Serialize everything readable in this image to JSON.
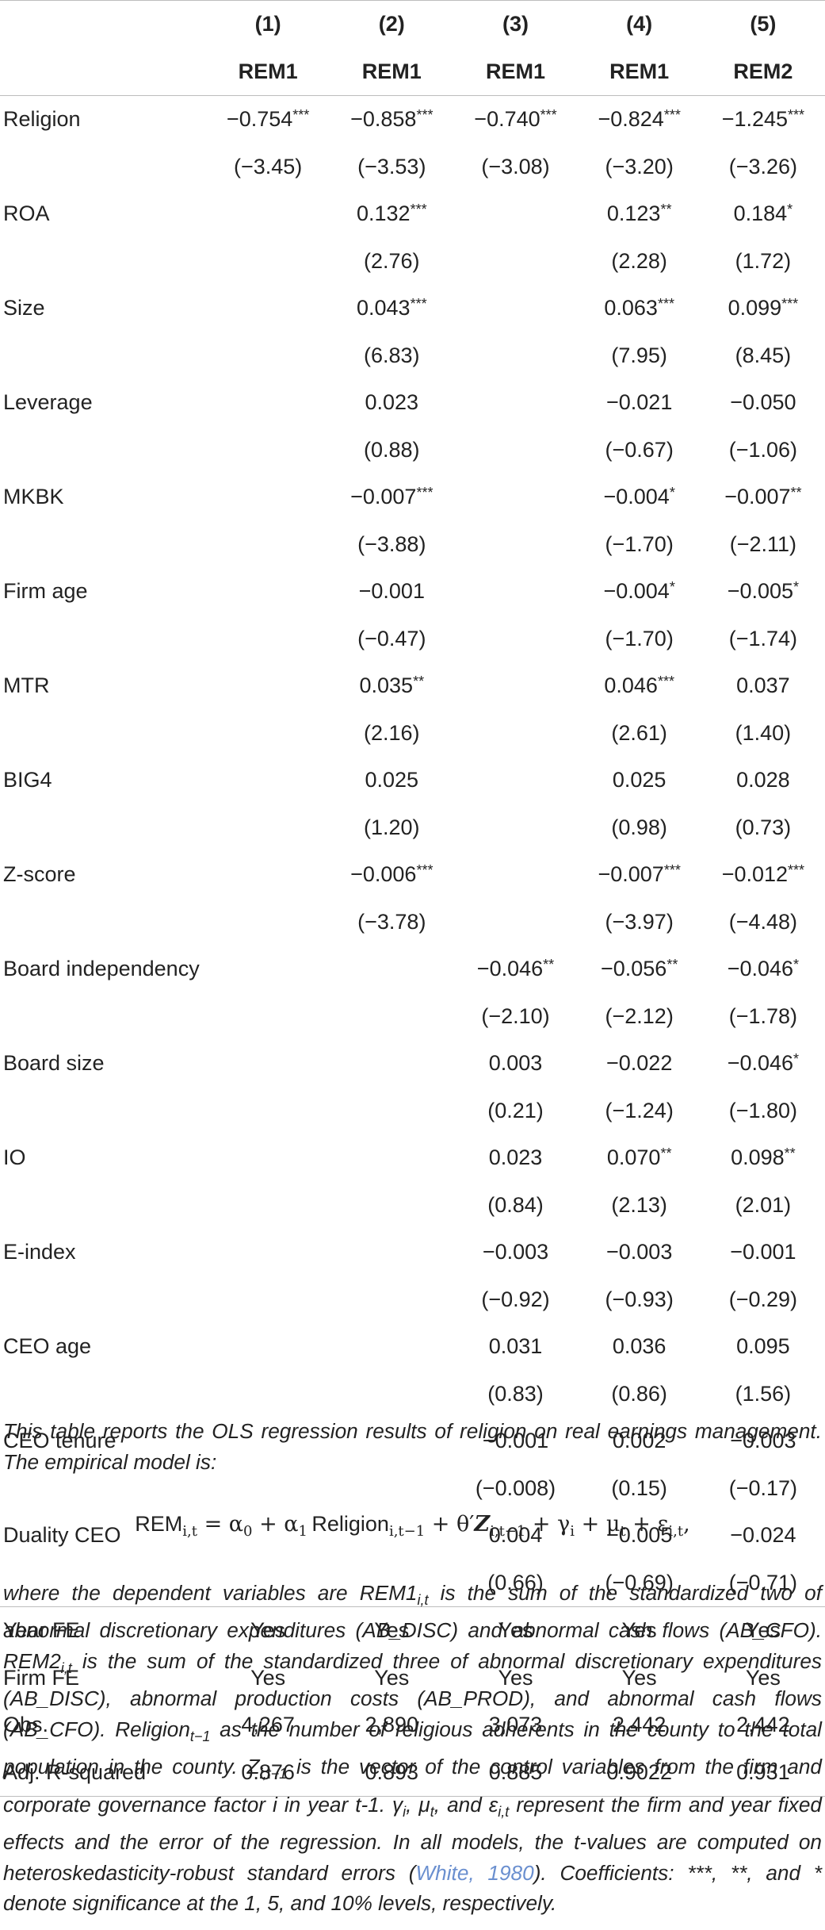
{
  "table": {
    "col_numbers": [
      "(1)",
      "(2)",
      "(3)",
      "(4)",
      "(5)"
    ],
    "col_dependents": [
      "REM1",
      "REM1",
      "REM1",
      "REM1",
      "REM2"
    ],
    "rows": [
      {
        "label": "Religion",
        "coef": [
          "−0.754***",
          "−0.858***",
          "−0.740***",
          "−0.824***",
          "−1.245***"
        ],
        "t": [
          "(−3.45)",
          "(−3.53)",
          "(−3.08)",
          "(−3.20)",
          "(−3.26)"
        ]
      },
      {
        "label": "ROA",
        "coef": [
          "",
          "0.132***",
          "",
          "0.123**",
          "0.184*"
        ],
        "t": [
          "",
          "(2.76)",
          "",
          "(2.28)",
          "(1.72)"
        ]
      },
      {
        "label": "Size",
        "coef": [
          "",
          "0.043***",
          "",
          "0.063***",
          "0.099***"
        ],
        "t": [
          "",
          "(6.83)",
          "",
          "(7.95)",
          "(8.45)"
        ]
      },
      {
        "label": "Leverage",
        "coef": [
          "",
          "0.023",
          "",
          "−0.021",
          "−0.050"
        ],
        "t": [
          "",
          "(0.88)",
          "",
          "(−0.67)",
          "(−1.06)"
        ]
      },
      {
        "label": "MKBK",
        "coef": [
          "",
          "−0.007***",
          "",
          "−0.004*",
          "−0.007**"
        ],
        "t": [
          "",
          "(−3.88)",
          "",
          "(−1.70)",
          "(−2.11)"
        ]
      },
      {
        "label": "Firm age",
        "coef": [
          "",
          "−0.001",
          "",
          "−0.004*",
          "−0.005*"
        ],
        "t": [
          "",
          "(−0.47)",
          "",
          "(−1.70)",
          "(−1.74)"
        ]
      },
      {
        "label": "MTR",
        "coef": [
          "",
          "0.035**",
          "",
          "0.046***",
          "0.037"
        ],
        "t": [
          "",
          "(2.16)",
          "",
          "(2.61)",
          "(1.40)"
        ]
      },
      {
        "label": "BIG4",
        "coef": [
          "",
          "0.025",
          "",
          "0.025",
          "0.028"
        ],
        "t": [
          "",
          "(1.20)",
          "",
          "(0.98)",
          "(0.73)"
        ]
      },
      {
        "label": "Z-score",
        "coef": [
          "",
          "−0.006***",
          "",
          "−0.007***",
          "−0.012***"
        ],
        "t": [
          "",
          "(−3.78)",
          "",
          "(−3.97)",
          "(−4.48)"
        ]
      },
      {
        "label": "Board independency",
        "coef": [
          "",
          "",
          "−0.046**",
          "−0.056**",
          "−0.046*"
        ],
        "t": [
          "",
          "",
          "(−2.10)",
          "(−2.12)",
          "(−1.78)"
        ]
      },
      {
        "label": "Board size",
        "coef": [
          "",
          "",
          "0.003",
          "−0.022",
          "−0.046*"
        ],
        "t": [
          "",
          "",
          "(0.21)",
          "(−1.24)",
          "(−1.80)"
        ]
      },
      {
        "label": "IO",
        "coef": [
          "",
          "",
          "0.023",
          "0.070**",
          "0.098**"
        ],
        "t": [
          "",
          "",
          "(0.84)",
          "(2.13)",
          "(2.01)"
        ]
      },
      {
        "label": "E-index",
        "coef": [
          "",
          "",
          "−0.003",
          "−0.003",
          "−0.001"
        ],
        "t": [
          "",
          "",
          "(−0.92)",
          "(−0.93)",
          "(−0.29)"
        ]
      },
      {
        "label": "CEO age",
        "coef": [
          "",
          "",
          "0.031",
          "0.036",
          "0.095"
        ],
        "t": [
          "",
          "",
          "(0.83)",
          "(0.86)",
          "(1.56)"
        ]
      },
      {
        "label": "CEO tenure",
        "coef": [
          "",
          "",
          "−0.001",
          "0.002",
          "−0.003"
        ],
        "t": [
          "",
          "",
          "(−0.008)",
          "(0.15)",
          "(−0.17)"
        ]
      },
      {
        "label": "Duality CEO",
        "coef": [
          "",
          "",
          "0.004",
          "−0.005",
          "−0.024"
        ],
        "t": [
          "",
          "",
          "(0.66)",
          "(−0.69)",
          "(−0.71)"
        ]
      }
    ],
    "footer_rows": [
      {
        "label": "Year FE",
        "values": [
          "Yes",
          "Yes",
          "Yes",
          "Yes",
          "Yes"
        ]
      },
      {
        "label": "Firm FE",
        "values": [
          "Yes",
          "Yes",
          "Yes",
          "Yes",
          "Yes"
        ]
      },
      {
        "label": "Obs.",
        "values": [
          "4,267",
          "2,890",
          "3,073",
          "2,442",
          "2,442"
        ]
      },
      {
        "label": "Adj. R-squared",
        "values": [
          "0.876",
          "0.893",
          "0.885",
          "0.9022",
          "0.931"
        ]
      }
    ]
  },
  "notes": {
    "intro": "This table reports the OLS regression results of religion on real earnings management. The empirical model is:",
    "equation": {
      "lhs": "REM",
      "lhs_sub": "i,t",
      "eq_sign": " = α",
      "alpha0_sub": "0",
      "plus_alpha1": " + α",
      "alpha1_sub": "1",
      "religion": "Religion",
      "religion_sub": "i,t−1",
      "theta": " + θ′",
      "z": "Z",
      "z_sub": "i,t−1",
      "gamma": " + γ",
      "gamma_sub": "i",
      "mu": " + μ",
      "mu_sub": "t",
      "eps": " + ε",
      "eps_sub": "i,t",
      "end": ","
    },
    "p1": "where the dependent variables are REM1",
    "p1_sub": "i,t",
    "p2": " is the sum of the standardized two of abnormal discretionary expenditures (AB_DISC) and abnormal cash flows (AB_CFO). REM2",
    "p2_sub": "i,t",
    "p3": " is the sum of the standardized three of abnormal discretionary expenditures (AB_DISC), abnormal production costs (AB_PROD), and abnormal cash flows (AB_CFO). Religion",
    "p3_sub": "t−1",
    "p4": " as the number of religious adherents in the county to the total population in the county. Z",
    "p4_sub": "i,t−1",
    "p5": " is the vector of the control variables from the firm and corporate governance factor i in year t-1. γ",
    "p5_sub": "i",
    "p6": ", μ",
    "p6_sub": "t",
    "p7": ", and ε",
    "p7_sub": "i,t",
    "p8": " represent the firm and year fixed effects and the error of the regression. In all models, the t-values are computed on heteroskedasticity-robust standard errors (",
    "cite": "White, 1980",
    "p9": "). Coefficients: ***, **, and * denote significance at the 1, 5, and 10% levels, respectively."
  }
}
